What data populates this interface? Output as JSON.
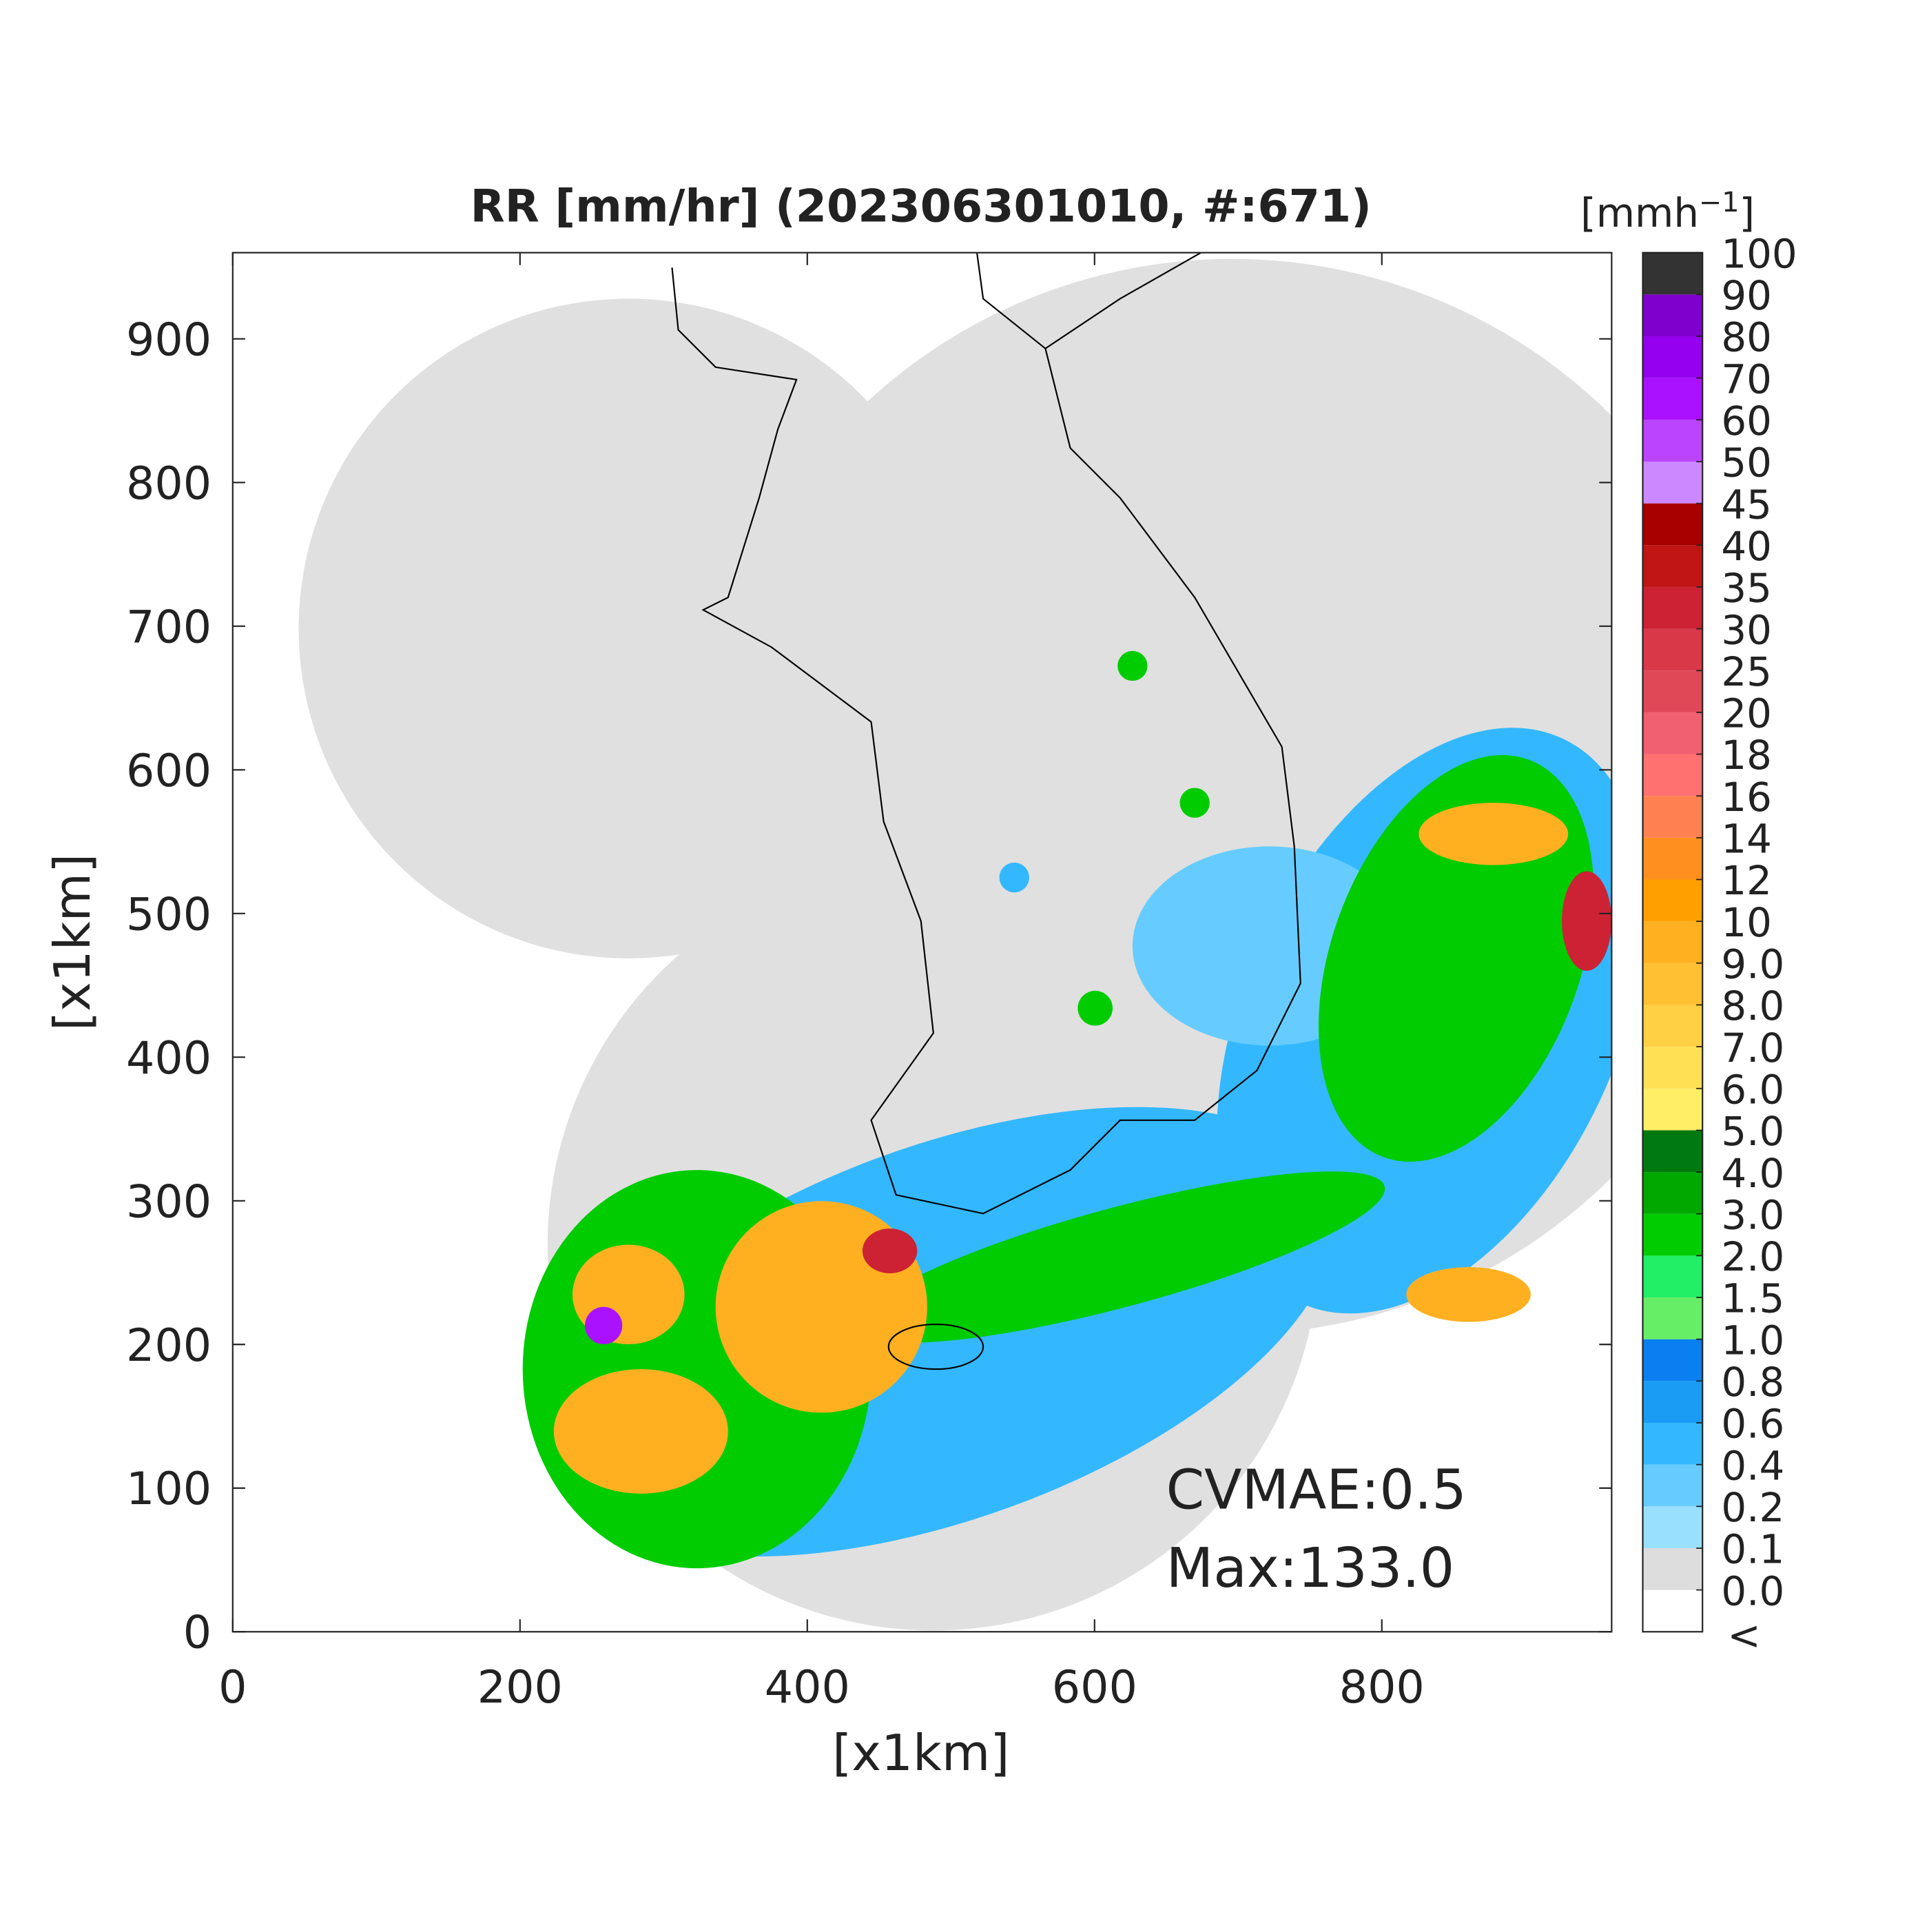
{
  "chart_data": {
    "type": "radar-map",
    "title": "RR [mm/hr] (202306301010, #:671)",
    "xlabel": "[x1km]",
    "ylabel": "[x1km]",
    "xlim": [
      0,
      960
    ],
    "ylim": [
      0,
      960
    ],
    "xticks": [
      0,
      200,
      400,
      600,
      800
    ],
    "yticks": [
      0,
      100,
      200,
      300,
      400,
      500,
      600,
      700,
      800,
      900
    ],
    "annotations": [
      "CVMAE:0.5",
      "Max:133.0"
    ],
    "colorbar": {
      "unit": "[mmh",
      "unit_exponent": "−1",
      "unit_close": "]",
      "underflow_label": "<",
      "underflow_color": "#ffffff",
      "levels": [
        {
          "value": 0,
          "label": "0.0"
        },
        0.1,
        0.2,
        0.4,
        0.6,
        0.8,
        {
          "value": 1,
          "label": "1.0"
        },
        1.5,
        {
          "value": 2,
          "label": "2.0"
        },
        {
          "value": 3,
          "label": "3.0"
        },
        {
          "value": 4,
          "label": "4.0"
        },
        {
          "value": 5,
          "label": "5.0"
        },
        {
          "value": 6,
          "label": "6.0"
        },
        {
          "value": 7,
          "label": "7.0"
        },
        {
          "value": 8,
          "label": "8.0"
        },
        {
          "value": 9,
          "label": "9.0"
        },
        10,
        12,
        14,
        16,
        18,
        20,
        25,
        30,
        35,
        40,
        45,
        50,
        60,
        70,
        80,
        90,
        100
      ],
      "colors": [
        "#dddddd",
        "#99e0ff",
        "#66ccff",
        "#33b8ff",
        "#1a9cf5",
        "#0a7ff0",
        "#66ee66",
        "#22ee66",
        "#00cc00",
        "#00a800",
        "#007a10",
        "#ffee66",
        "#ffe055",
        "#ffd044",
        "#ffc033",
        "#ffb020",
        "#ffa000",
        "#ff9020",
        "#ff8050",
        "#ff7070",
        "#f06070",
        "#e04858",
        "#d83848",
        "#cc2233",
        "#c01515",
        "#a80000",
        "#cc88ff",
        "#bb44ff",
        "#aa11ff",
        "#9500ee",
        "#7f00cc",
        "#333333"
      ]
    }
  }
}
